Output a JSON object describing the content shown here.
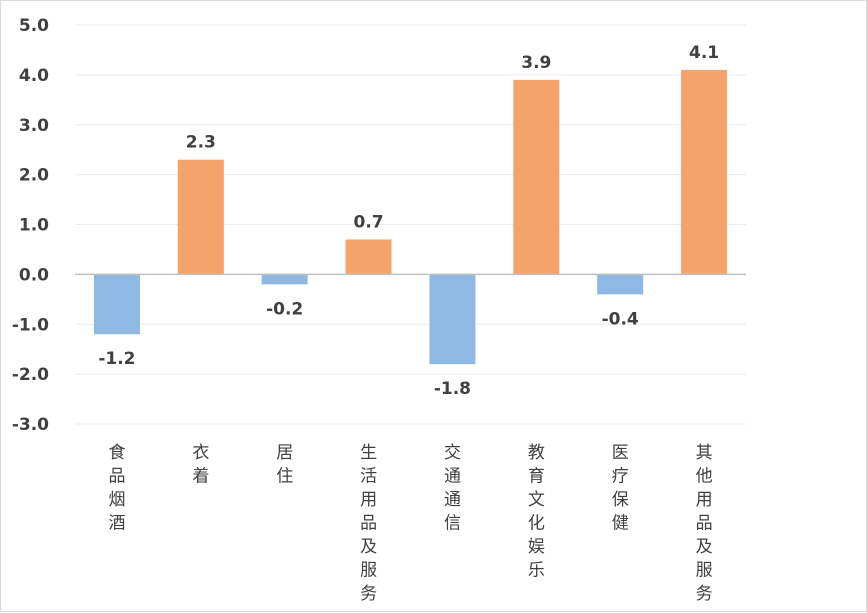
{
  "chart_data": {
    "type": "bar",
    "title": "",
    "xlabel": "",
    "ylabel": "",
    "categories": [
      "食品烟酒",
      "衣着",
      "居住",
      "生活用品及服务",
      "交通通信",
      "教育文化娱乐",
      "医疗保健",
      "其他用品及服务"
    ],
    "values": [
      -1.2,
      2.3,
      -0.2,
      0.7,
      -1.8,
      3.9,
      -0.4,
      4.1
    ],
    "data_labels": [
      "-1.2",
      "2.3",
      "-0.2",
      "0.7",
      "-1.8",
      "3.9",
      "-0.4",
      "4.1"
    ],
    "ylim": [
      -3.0,
      5.0
    ],
    "yticks": [
      "5.0",
      "4.0",
      "3.0",
      "2.0",
      "1.0",
      "0.0",
      "-1.0",
      "-2.0",
      "-3.0"
    ],
    "grid": true,
    "legend": "none",
    "colors": {
      "positive": "#f4a46a",
      "negative": "#8fb9e3",
      "grid": "#ececec",
      "axis": "#bfbfbf",
      "text": "#404040"
    }
  }
}
